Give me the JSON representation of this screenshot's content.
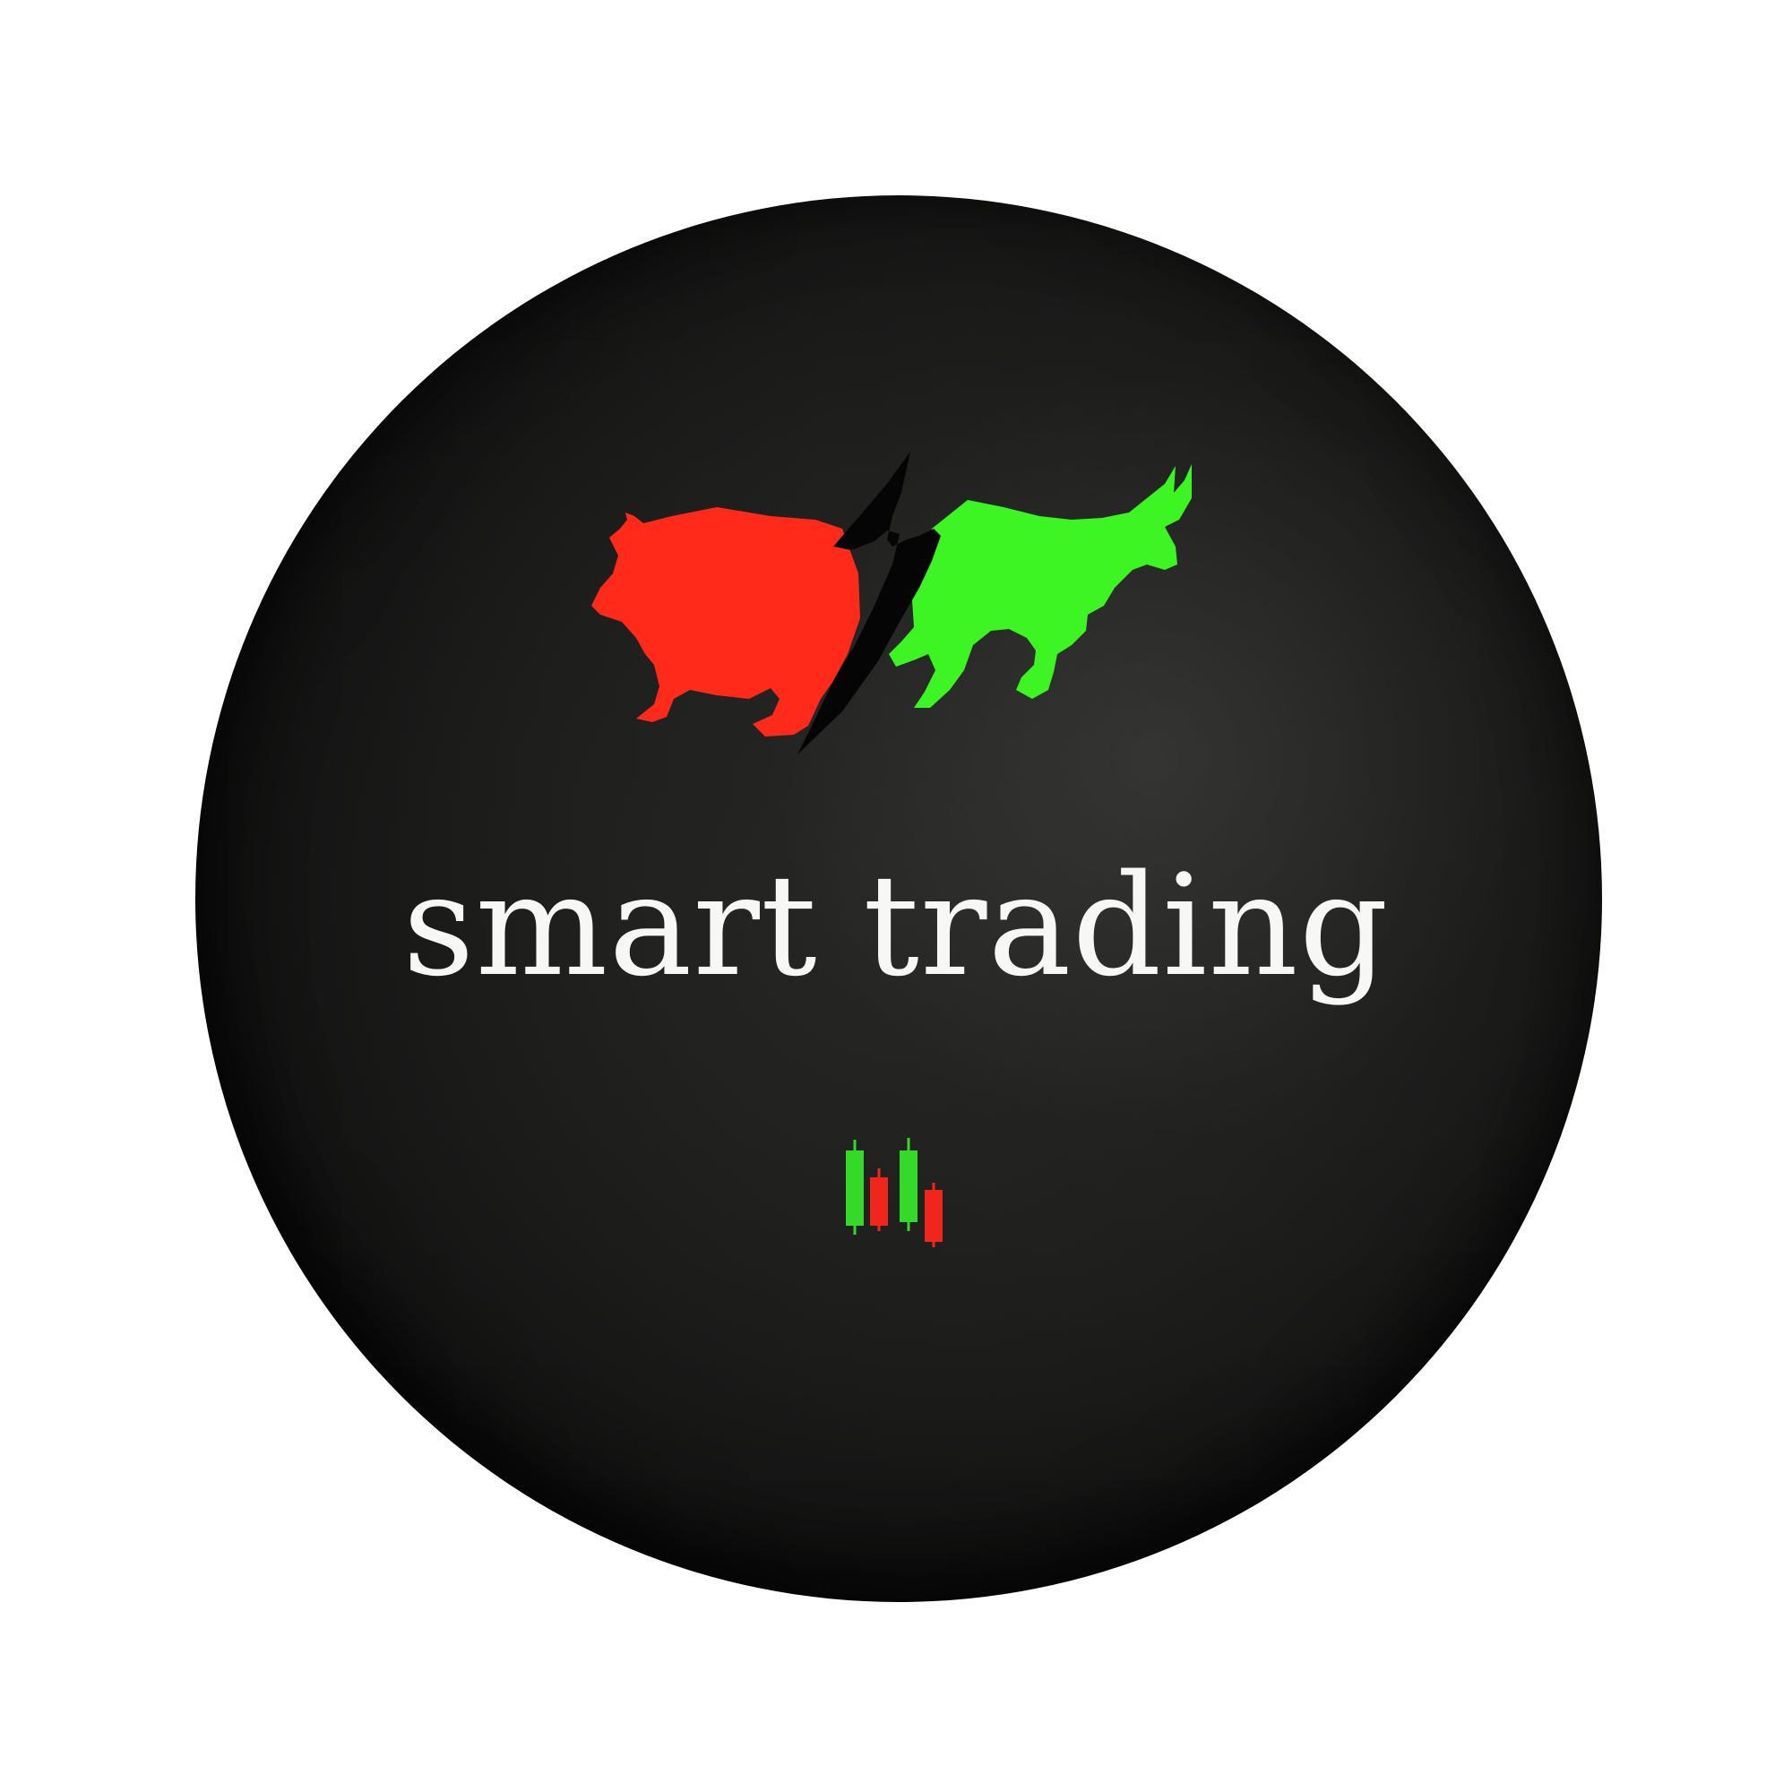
{
  "brand": {
    "name": "smart trading"
  },
  "emblem": {
    "bear_icon": "bear-silhouette-icon",
    "bull_icon": "bull-silhouette-icon",
    "divider_icon": "lightning-bolt-icon",
    "bear_color": "#ff2a1a",
    "bull_color": "#3cf522"
  },
  "candlestick_icon": {
    "icon": "candlestick-chart-icon",
    "up_color": "#35d92a",
    "down_color": "#f0261c"
  },
  "background": {
    "circle_color": "#1c1c1b",
    "page_color": "#ffffff"
  }
}
